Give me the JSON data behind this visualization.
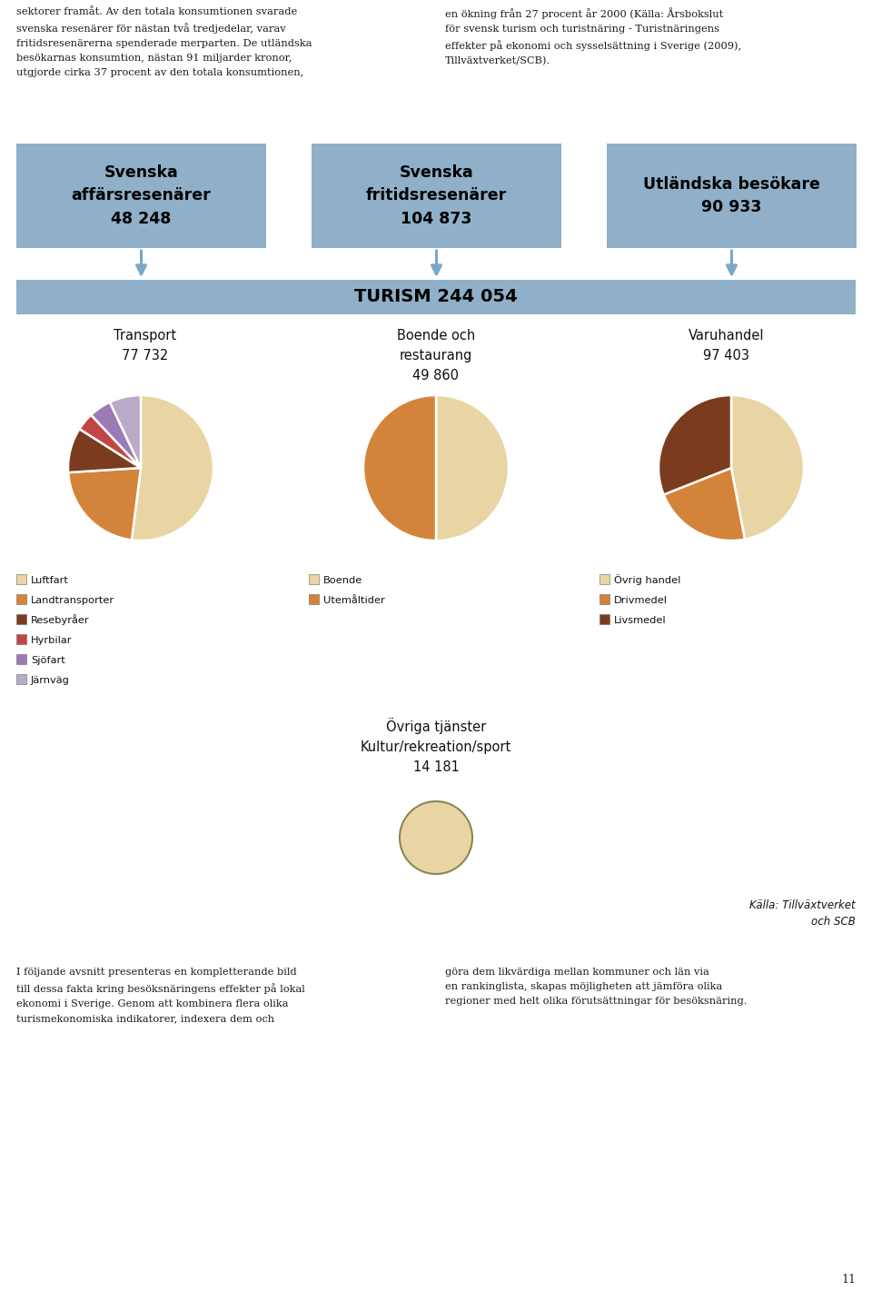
{
  "top_text_left": "sektorer framåt. Av den totala konsumtionen svarade\nsvenska resenärer för nästan två tredjedelar, varav\nfritidsresenärerna spenderade merparten. De utländska\nbesökarnas konsumtion, nästan 91 miljarder kronor,\nutgjorde cirka 37 procent av den totala konsumtionen,",
  "top_text_right": "en ökning från 27 procent år 2000 (Källa: Årsbokslut\nför svensk turism och turistnäring - Turistnäringens\neffekter på ekonomi och sysselsättning i Sverige (2009),\nTillväxtverket/SCB).",
  "box_color": "#8fb0c8",
  "boxes": [
    {
      "label": "Svenska\naffärsresenärer\n48 248"
    },
    {
      "label": "Svenska\nfritidsresenärer\n104 873"
    },
    {
      "label": "Utländska besökare\n90 933"
    }
  ],
  "turism_label": "TURISM 244 054",
  "transport_title": "Transport\n77 732",
  "boende_title": "Boende och\nrestaurang\n49 860",
  "varuhandel_title": "Varuhandel\n97 403",
  "ovriga_title": "Övriga tjänster\nKultur/rekreation/sport\n14 181",
  "pie1_sizes": [
    52,
    22,
    10,
    4,
    5,
    7
  ],
  "pie1_colors": [
    "#e8d5a3",
    "#d4843a",
    "#7a3b1e",
    "#c14545",
    "#9b7ab5",
    "#baaac8"
  ],
  "pie1_labels": [
    "Luftfart",
    "Landtransporter",
    "Resebyråer",
    "Hyrbilar",
    "Sjöfart",
    "Järnväg"
  ],
  "pie2_sizes": [
    50,
    50
  ],
  "pie2_colors": [
    "#e8d5a3",
    "#d4843a"
  ],
  "pie2_labels": [
    "Boende",
    "Utemåltider"
  ],
  "pie3_sizes": [
    47,
    22,
    31
  ],
  "pie3_colors": [
    "#e8d5a3",
    "#d4843a",
    "#7a3b1e"
  ],
  "pie3_labels": [
    "Övrig handel",
    "Drivmedel",
    "Livsmedel"
  ],
  "ovriga_color": "#e8d5a3",
  "source_text": "Källa: Tillväxtverket\noch SCB",
  "bottom_text_left": "I följande avsnitt presenteras en kompletterande bild\ntill dessa fakta kring besöksnäringens effekter på lokal\nekonomi i Sverige. Genom att kombinera flera olika\nturismekonomiska indikatorer, indexera dem och",
  "bottom_text_right": "göra dem likvärdiga mellan kommuner och län via\nen rankinglista, skapas möjligheten att jämföra olika\nregioner med helt olika förutsättningar för besöksnäring.",
  "page_number": "11",
  "bg": "#ffffff"
}
